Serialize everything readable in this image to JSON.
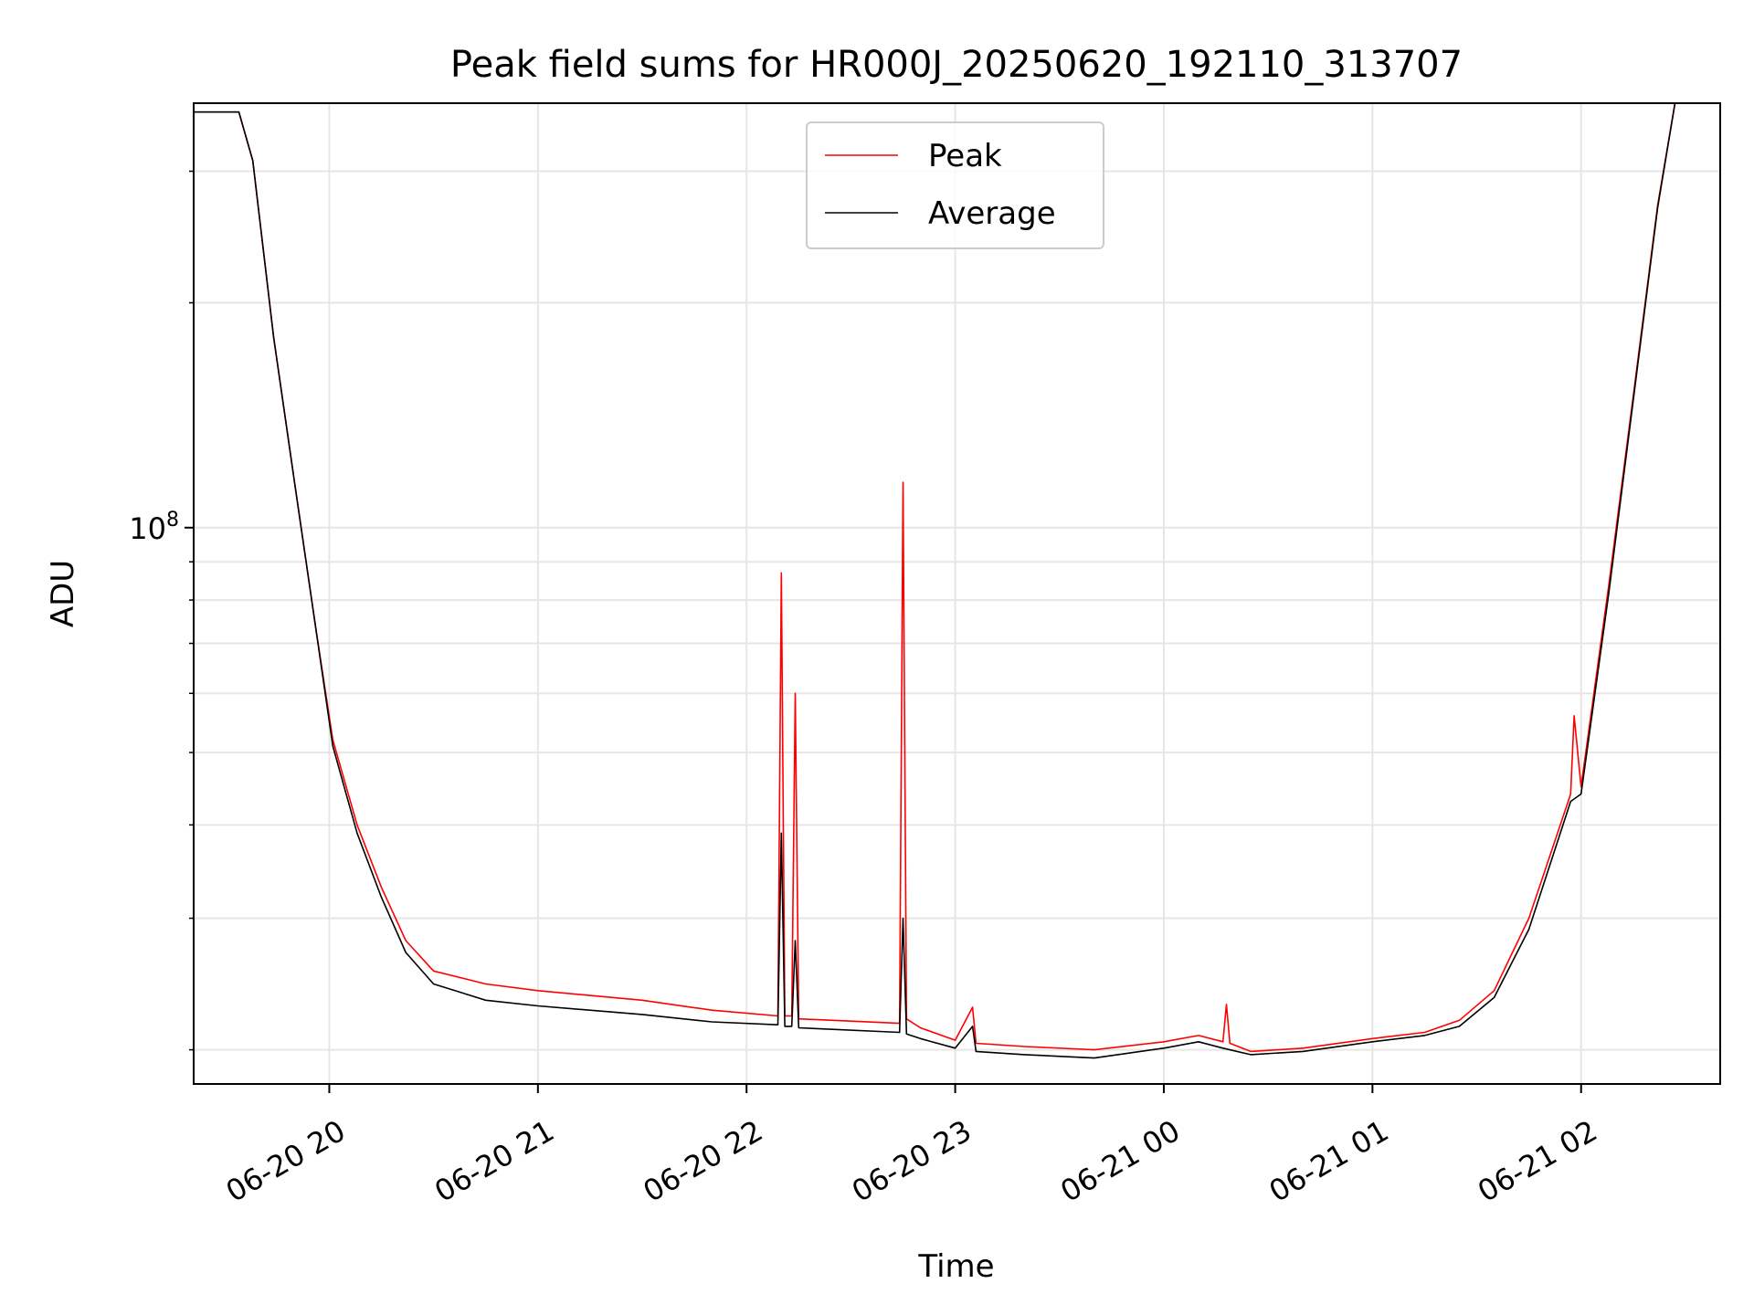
{
  "chart_data": {
    "type": "line",
    "title": "Peak field sums for HR000J_20250620_192110_313707",
    "xlabel": "Time",
    "ylabel": "ADU",
    "yscale": "log",
    "ylim": [
      18000000,
      370000000
    ],
    "xlim": [
      "2025-06-20T19:21",
      "2025-06-21T02:40"
    ],
    "grid": true,
    "legend": "top-center",
    "x_ticks": [
      {
        "label": "06-20 20",
        "t": "2025-06-20T20:00"
      },
      {
        "label": "06-20 21",
        "t": "2025-06-20T21:00"
      },
      {
        "label": "06-20 22",
        "t": "2025-06-20T22:00"
      },
      {
        "label": "06-20 23",
        "t": "2025-06-20T23:00"
      },
      {
        "label": "06-21 00",
        "t": "2025-06-21T00:00"
      },
      {
        "label": "06-21 01",
        "t": "2025-06-21T01:00"
      },
      {
        "label": "06-21 02",
        "t": "2025-06-21T02:00"
      }
    ],
    "y_ticks": [
      {
        "value": 100000000,
        "base": "10",
        "exponent": "8"
      }
    ],
    "series": [
      {
        "name": "Peak",
        "color": "#ff0000",
        "points": [
          [
            "2025-06-20T19:21",
            360000000
          ],
          [
            "2025-06-20T19:34",
            360000000
          ],
          [
            "2025-06-20T19:38",
            310000000
          ],
          [
            "2025-06-20T19:44",
            180000000
          ],
          [
            "2025-06-20T19:50",
            115000000
          ],
          [
            "2025-06-20T19:56",
            74000000
          ],
          [
            "2025-06-20T20:01",
            52000000
          ],
          [
            "2025-06-20T20:08",
            40000000
          ],
          [
            "2025-06-20T20:15",
            33000000
          ],
          [
            "2025-06-20T20:22",
            28000000
          ],
          [
            "2025-06-20T20:30",
            25500000
          ],
          [
            "2025-06-20T20:45",
            24500000
          ],
          [
            "2025-06-20T21:00",
            24000000
          ],
          [
            "2025-06-20T21:30",
            23300000
          ],
          [
            "2025-06-20T21:50",
            22600000
          ],
          [
            "2025-06-20T22:09",
            22200000
          ],
          [
            "2025-06-20T22:10",
            87000000
          ],
          [
            "2025-06-20T22:11",
            22200000
          ],
          [
            "2025-06-20T22:13",
            22200000
          ],
          [
            "2025-06-20T22:14",
            60000000
          ],
          [
            "2025-06-20T22:15",
            22000000
          ],
          [
            "2025-06-20T22:44",
            21700000
          ],
          [
            "2025-06-20T22:45",
            115000000
          ],
          [
            "2025-06-20T22:46",
            22000000
          ],
          [
            "2025-06-20T22:50",
            21400000
          ],
          [
            "2025-06-20T23:00",
            20600000
          ],
          [
            "2025-06-20T23:05",
            22800000
          ],
          [
            "2025-06-20T23:06",
            20400000
          ],
          [
            "2025-06-20T23:20",
            20200000
          ],
          [
            "2025-06-20T23:40",
            20000000
          ],
          [
            "2025-06-21T00:00",
            20500000
          ],
          [
            "2025-06-21T00:10",
            20900000
          ],
          [
            "2025-06-21T00:17",
            20500000
          ],
          [
            "2025-06-21T00:18",
            23000000
          ],
          [
            "2025-06-21T00:19",
            20400000
          ],
          [
            "2025-06-21T00:25",
            19900000
          ],
          [
            "2025-06-21T00:40",
            20100000
          ],
          [
            "2025-06-21T01:00",
            20700000
          ],
          [
            "2025-06-21T01:15",
            21100000
          ],
          [
            "2025-06-21T01:25",
            21900000
          ],
          [
            "2025-06-21T01:35",
            24000000
          ],
          [
            "2025-06-21T01:45",
            30000000
          ],
          [
            "2025-06-21T01:57",
            44000000
          ],
          [
            "2025-06-21T01:58",
            56000000
          ],
          [
            "2025-06-21T02:00",
            45000000
          ],
          [
            "2025-06-21T02:08",
            84000000
          ],
          [
            "2025-06-21T02:15",
            150000000
          ],
          [
            "2025-06-21T02:22",
            270000000
          ],
          [
            "2025-06-21T02:27",
            370000000
          ],
          [
            "2025-06-21T02:40",
            370000000
          ]
        ]
      },
      {
        "name": "Average",
        "color": "#000000",
        "points": [
          [
            "2025-06-20T19:21",
            360000000
          ],
          [
            "2025-06-20T19:34",
            360000000
          ],
          [
            "2025-06-20T19:38",
            310000000
          ],
          [
            "2025-06-20T19:44",
            180000000
          ],
          [
            "2025-06-20T19:50",
            115000000
          ],
          [
            "2025-06-20T19:56",
            74000000
          ],
          [
            "2025-06-20T20:01",
            51000000
          ],
          [
            "2025-06-20T20:08",
            39000000
          ],
          [
            "2025-06-20T20:15",
            32000000
          ],
          [
            "2025-06-20T20:22",
            27000000
          ],
          [
            "2025-06-20T20:30",
            24500000
          ],
          [
            "2025-06-20T20:45",
            23300000
          ],
          [
            "2025-06-20T21:00",
            22900000
          ],
          [
            "2025-06-20T21:30",
            22300000
          ],
          [
            "2025-06-20T21:50",
            21800000
          ],
          [
            "2025-06-20T22:09",
            21600000
          ],
          [
            "2025-06-20T22:10",
            39000000
          ],
          [
            "2025-06-20T22:11",
            21500000
          ],
          [
            "2025-06-20T22:13",
            21500000
          ],
          [
            "2025-06-20T22:14",
            28000000
          ],
          [
            "2025-06-20T22:15",
            21400000
          ],
          [
            "2025-06-20T22:44",
            21100000
          ],
          [
            "2025-06-20T22:45",
            30000000
          ],
          [
            "2025-06-20T22:46",
            21000000
          ],
          [
            "2025-06-20T22:50",
            20700000
          ],
          [
            "2025-06-20T23:00",
            20100000
          ],
          [
            "2025-06-20T23:05",
            21500000
          ],
          [
            "2025-06-20T23:06",
            19900000
          ],
          [
            "2025-06-20T23:20",
            19700000
          ],
          [
            "2025-06-20T23:40",
            19500000
          ],
          [
            "2025-06-21T00:00",
            20100000
          ],
          [
            "2025-06-21T00:10",
            20500000
          ],
          [
            "2025-06-21T00:17",
            20100000
          ],
          [
            "2025-06-21T00:25",
            19700000
          ],
          [
            "2025-06-21T00:40",
            19900000
          ],
          [
            "2025-06-21T01:00",
            20500000
          ],
          [
            "2025-06-21T01:15",
            20900000
          ],
          [
            "2025-06-21T01:25",
            21500000
          ],
          [
            "2025-06-21T01:35",
            23500000
          ],
          [
            "2025-06-21T01:45",
            29000000
          ],
          [
            "2025-06-21T01:57",
            43000000
          ],
          [
            "2025-06-21T02:00",
            44000000
          ],
          [
            "2025-06-21T02:08",
            82000000
          ],
          [
            "2025-06-21T02:15",
            148000000
          ],
          [
            "2025-06-21T02:22",
            268000000
          ],
          [
            "2025-06-21T02:27",
            370000000
          ],
          [
            "2025-06-21T02:40",
            370000000
          ]
        ]
      }
    ]
  }
}
